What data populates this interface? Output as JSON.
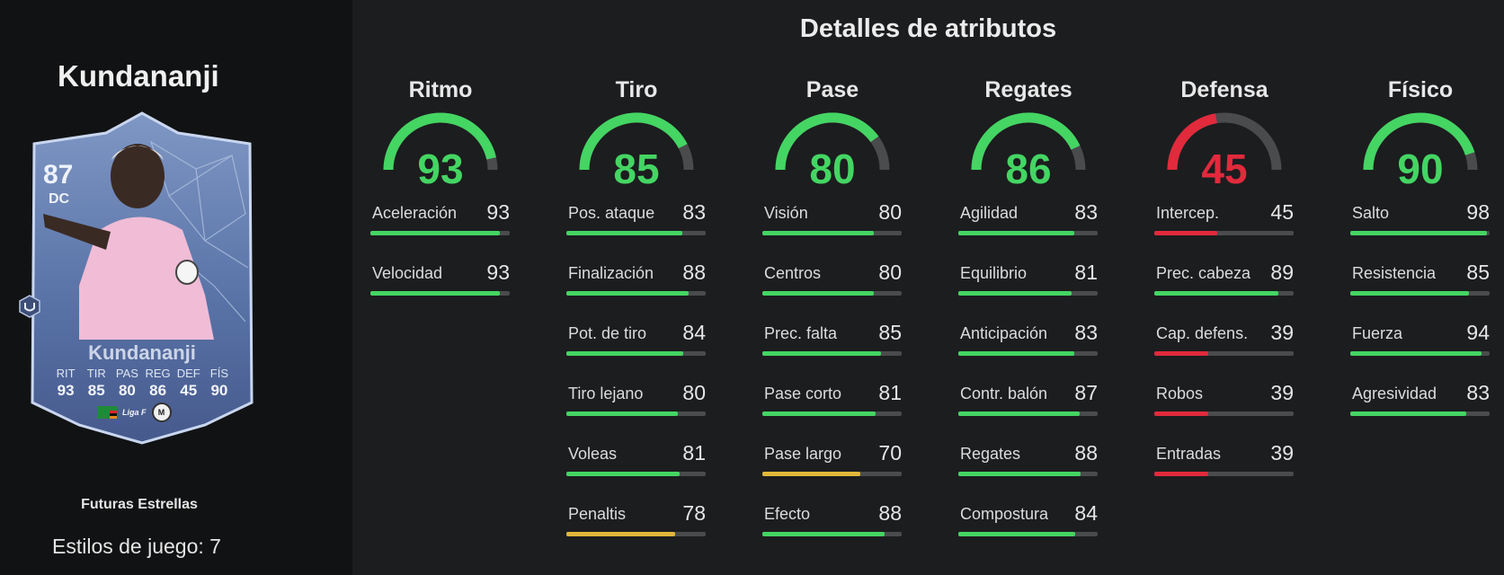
{
  "colors": {
    "high": "#44d563",
    "mid": "#e0b83a",
    "low": "#e12a3c",
    "track": "#4a4b4d"
  },
  "player": {
    "name": "Kundananji",
    "rating": "87",
    "position": "DC",
    "card_name": "Kundananji",
    "version": "Futuras Estrellas",
    "playstyles_label": "Estilos de juego: 7",
    "league_badge": "Liga F",
    "club_badge": "M",
    "side_icon": "playstyle-plus-icon",
    "card_stats": [
      {
        "label": "RIT",
        "value": "93"
      },
      {
        "label": "TIR",
        "value": "85"
      },
      {
        "label": "PAS",
        "value": "80"
      },
      {
        "label": "REG",
        "value": "86"
      },
      {
        "label": "DEF",
        "value": "45"
      },
      {
        "label": "FÍS",
        "value": "90"
      }
    ]
  },
  "title": "Detalles de atributos",
  "categories": [
    {
      "name": "Ritmo",
      "value": 93,
      "attrs": [
        {
          "label": "Aceleración",
          "value": 93
        },
        {
          "label": "Velocidad",
          "value": 93
        }
      ]
    },
    {
      "name": "Tiro",
      "value": 85,
      "attrs": [
        {
          "label": "Pos. ataque",
          "value": 83
        },
        {
          "label": "Finalización",
          "value": 88
        },
        {
          "label": "Pot. de tiro",
          "value": 84
        },
        {
          "label": "Tiro lejano",
          "value": 80
        },
        {
          "label": "Voleas",
          "value": 81
        },
        {
          "label": "Penaltis",
          "value": 78
        }
      ]
    },
    {
      "name": "Pase",
      "value": 80,
      "attrs": [
        {
          "label": "Visión",
          "value": 80
        },
        {
          "label": "Centros",
          "value": 80
        },
        {
          "label": "Prec. falta",
          "value": 85
        },
        {
          "label": "Pase corto",
          "value": 81
        },
        {
          "label": "Pase largo",
          "value": 70
        },
        {
          "label": "Efecto",
          "value": 88
        }
      ]
    },
    {
      "name": "Regates",
      "value": 86,
      "attrs": [
        {
          "label": "Agilidad",
          "value": 83
        },
        {
          "label": "Equilibrio",
          "value": 81
        },
        {
          "label": "Anticipación",
          "value": 83
        },
        {
          "label": "Contr. balón",
          "value": 87
        },
        {
          "label": "Regates",
          "value": 88
        },
        {
          "label": "Compostura",
          "value": 84
        }
      ]
    },
    {
      "name": "Defensa",
      "value": 45,
      "attrs": [
        {
          "label": "Intercep.",
          "value": 45
        },
        {
          "label": "Prec. cabeza",
          "value": 89
        },
        {
          "label": "Cap. defens.",
          "value": 39
        },
        {
          "label": "Robos",
          "value": 39
        },
        {
          "label": "Entradas",
          "value": 39
        }
      ]
    },
    {
      "name": "Físico",
      "value": 90,
      "attrs": [
        {
          "label": "Salto",
          "value": 98
        },
        {
          "label": "Resistencia",
          "value": 85
        },
        {
          "label": "Fuerza",
          "value": 94
        },
        {
          "label": "Agresividad",
          "value": 83
        }
      ]
    }
  ]
}
